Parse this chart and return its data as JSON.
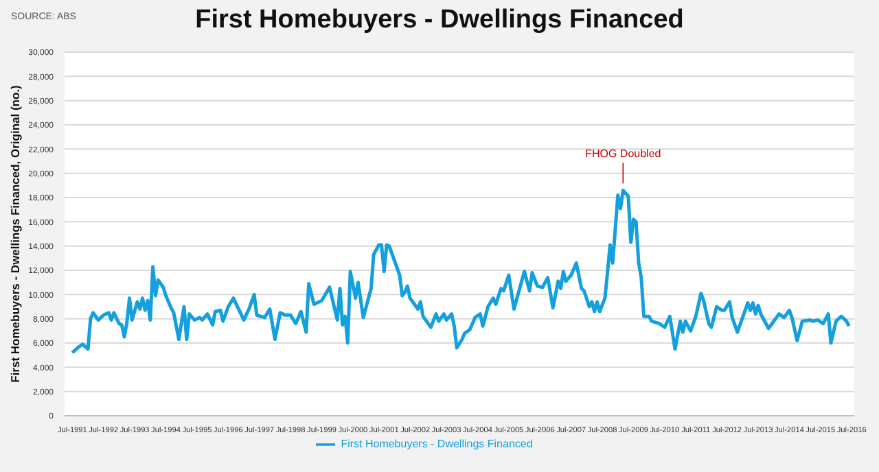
{
  "chart_data": {
    "type": "line",
    "title": "First Homebuyers - Dwellings Financed",
    "ylabel": "First Homebuyers - Dwellings Financed, Original  (no.)",
    "annotations": [
      "SOURCE: ABS",
      {
        "text": "FHOG Doubled",
        "x": "2009-03",
        "y": 18600
      }
    ],
    "x": [
      "1991-07",
      "1991-09",
      "1991-11",
      "1992-01",
      "1992-02",
      "1992-03",
      "1992-05",
      "1992-07",
      "1992-09",
      "1992-10",
      "1992-11",
      "1993-01",
      "1993-02",
      "1993-03",
      "1993-04",
      "1993-05",
      "1993-06",
      "1993-08",
      "1993-09",
      "1993-10",
      "1993-11",
      "1993-12",
      "1994-01",
      "1994-02",
      "1994-03",
      "1994-04",
      "1994-06",
      "1994-07",
      "1994-09",
      "1994-10",
      "1994-12",
      "1995-02",
      "1995-03",
      "1995-04",
      "1995-06",
      "1995-08",
      "1995-09",
      "1995-11",
      "1996-01",
      "1996-02",
      "1996-04",
      "1996-05",
      "1996-07",
      "1996-09",
      "1997-01",
      "1997-03",
      "1997-05",
      "1997-06",
      "1997-09",
      "1997-11",
      "1998-01",
      "1998-03",
      "1998-05",
      "1998-07",
      "1998-09",
      "1998-11",
      "1999-01",
      "1999-02",
      "1999-04",
      "1999-07",
      "1999-10",
      "2000-01",
      "2000-02",
      "2000-03",
      "2000-04",
      "2000-05",
      "2000-06",
      "2000-08",
      "2000-09",
      "2000-11",
      "2001-02",
      "2001-03",
      "2001-05",
      "2001-06",
      "2001-07",
      "2001-08",
      "2001-09",
      "2002-01",
      "2002-02",
      "2002-03",
      "2002-04",
      "2002-05",
      "2002-08",
      "2002-09",
      "2002-10",
      "2003-01",
      "2003-03",
      "2003-04",
      "2003-06",
      "2003-07",
      "2003-09",
      "2003-10",
      "2003-11",
      "2004-01",
      "2004-02",
      "2004-04",
      "2004-06",
      "2004-08",
      "2004-09",
      "2004-11",
      "2005-01",
      "2005-02",
      "2005-04",
      "2005-05",
      "2005-07",
      "2005-09",
      "2006-01",
      "2006-03",
      "2006-04",
      "2006-06",
      "2006-08",
      "2006-10",
      "2006-12",
      "2007-02",
      "2007-03",
      "2007-04",
      "2007-05",
      "2007-07",
      "2007-09",
      "2007-11",
      "2007-12",
      "2008-02",
      "2008-03",
      "2008-04",
      "2008-05",
      "2008-06",
      "2008-08",
      "2008-09",
      "2008-10",
      "2008-11",
      "2009-01",
      "2009-02",
      "2009-03",
      "2009-05",
      "2009-06",
      "2009-07",
      "2009-08",
      "2009-09",
      "2009-10",
      "2009-11",
      "2010-01",
      "2010-02",
      "2010-05",
      "2010-07",
      "2010-09",
      "2010-11",
      "2011-01",
      "2011-02",
      "2011-03",
      "2011-05",
      "2011-07",
      "2011-09",
      "2011-10",
      "2011-12",
      "2012-01",
      "2012-03",
      "2012-05",
      "2012-06",
      "2012-08",
      "2012-09",
      "2012-11",
      "2013-01",
      "2013-03",
      "2013-04",
      "2013-05",
      "2013-06",
      "2013-07",
      "2013-08",
      "2013-11",
      "2014-01",
      "2014-03",
      "2014-05",
      "2014-07",
      "2014-08",
      "2014-10",
      "2014-12",
      "2015-03",
      "2015-04",
      "2015-06",
      "2015-08",
      "2015-10",
      "2015-11",
      "2016-01",
      "2016-03",
      "2016-05",
      "2016-06"
    ],
    "series": [
      {
        "name": "First Homebuyers - Dwellings Financed",
        "color": "#14a0dc",
        "values": [
          5200,
          5600,
          5900,
          5500,
          8000,
          8500,
          7900,
          8300,
          8500,
          7900,
          8500,
          7600,
          7500,
          6500,
          7700,
          9700,
          7900,
          9400,
          8800,
          9700,
          8700,
          9500,
          7900,
          12300,
          9900,
          11200,
          10600,
          9900,
          8900,
          8500,
          6300,
          9000,
          6300,
          8400,
          7900,
          8100,
          7900,
          8400,
          7500,
          8600,
          8700,
          7800,
          9000,
          9700,
          7900,
          8800,
          10000,
          8300,
          8100,
          8800,
          6300,
          8500,
          8300,
          8300,
          7600,
          8600,
          6900,
          10900,
          9200,
          9500,
          10600,
          7900,
          10500,
          7500,
          8200,
          6000,
          11900,
          9700,
          11000,
          8100,
          10500,
          13300,
          14100,
          14100,
          11900,
          14100,
          14000,
          11600,
          9900,
          10200,
          10700,
          9700,
          8800,
          9400,
          8200,
          7300,
          8400,
          7800,
          8400,
          7900,
          8400,
          7400,
          5600,
          6300,
          6800,
          7100,
          8100,
          8400,
          7400,
          9000,
          9700,
          9200,
          10500,
          10300,
          11600,
          8800,
          11900,
          10300,
          11800,
          10700,
          10600,
          11400,
          8900,
          11100,
          10500,
          11900,
          11100,
          11600,
          12600,
          10500,
          10300,
          9000,
          9400,
          8600,
          9400,
          8600,
          9700,
          11800,
          14100,
          12600,
          18200,
          17100,
          18600,
          18100,
          14300,
          16200,
          16000,
          12600,
          11400,
          8200,
          8200,
          7800,
          7600,
          7300,
          8200,
          5500,
          7800,
          6900,
          7800,
          7000,
          8200,
          10100,
          9500,
          7600,
          7300,
          9000,
          8700,
          8700,
          9400,
          8100,
          6900,
          8100,
          9300,
          8700,
          9300,
          8400,
          9100,
          8400,
          7200,
          7800,
          8400,
          8100,
          8700,
          8100,
          6200,
          7800,
          7900,
          7800,
          7900,
          7600,
          8400,
          6000,
          7800,
          8200,
          7800,
          7400
        ]
      }
    ],
    "xlim": [
      "1991-04",
      "2016-08"
    ],
    "xticks": [
      {
        "value": "1991-07",
        "label": "Jul-1991"
      },
      {
        "value": "1992-07",
        "label": "Jul-1992"
      },
      {
        "value": "1993-07",
        "label": "Jul-1993"
      },
      {
        "value": "1994-07",
        "label": "Jul-1994"
      },
      {
        "value": "1995-07",
        "label": "Jul-1995"
      },
      {
        "value": "1996-07",
        "label": "Jul-1996"
      },
      {
        "value": "1997-07",
        "label": "Jul-1997"
      },
      {
        "value": "1998-07",
        "label": "Jul-1998"
      },
      {
        "value": "1999-07",
        "label": "Jul-1999"
      },
      {
        "value": "2000-07",
        "label": "Jul-2000"
      },
      {
        "value": "2001-07",
        "label": "Jul-2001"
      },
      {
        "value": "2002-07",
        "label": "Jul-2002"
      },
      {
        "value": "2003-07",
        "label": "Jul-2003"
      },
      {
        "value": "2004-07",
        "label": "Jul-2004"
      },
      {
        "value": "2005-07",
        "label": "Jul-2005"
      },
      {
        "value": "2006-07",
        "label": "Jul-2006"
      },
      {
        "value": "2007-07",
        "label": "Jul-2007"
      },
      {
        "value": "2008-07",
        "label": "Jul-2008"
      },
      {
        "value": "2009-07",
        "label": "Jul-2009"
      },
      {
        "value": "2010-07",
        "label": "Jul-2010"
      },
      {
        "value": "2011-07",
        "label": "Jul-2011"
      },
      {
        "value": "2012-07",
        "label": "Jul-2012"
      },
      {
        "value": "2013-07",
        "label": "Jul-2013"
      },
      {
        "value": "2014-07",
        "label": "Jul-2014"
      },
      {
        "value": "2015-07",
        "label": "Jul-2015"
      },
      {
        "value": "2016-07",
        "label": "Jul-2016"
      }
    ],
    "ylim": [
      0,
      30000
    ],
    "yticks": [
      0,
      {
        "value": 2000,
        "label": "2,000"
      },
      {
        "value": 4000,
        "label": "4,000"
      },
      {
        "value": 6000,
        "label": "6,000"
      },
      {
        "value": 8000,
        "label": "8,000"
      },
      {
        "value": 10000,
        "label": "10,000"
      },
      {
        "value": 12000,
        "label": "12,000"
      },
      {
        "value": 14000,
        "label": "14,000"
      },
      {
        "value": 16000,
        "label": "16,000"
      },
      {
        "value": 18000,
        "label": "18,000"
      },
      {
        "value": 20000,
        "label": "20,000"
      },
      {
        "value": 22000,
        "label": "22,000"
      },
      {
        "value": 24000,
        "label": "24,000"
      },
      {
        "value": 26000,
        "label": "26,000"
      },
      {
        "value": 28000,
        "label": "28,000"
      },
      {
        "value": 30000,
        "label": "30,000"
      }
    ],
    "grid": "y",
    "legend": "bottom",
    "marker": "none",
    "line_style": "solid"
  }
}
